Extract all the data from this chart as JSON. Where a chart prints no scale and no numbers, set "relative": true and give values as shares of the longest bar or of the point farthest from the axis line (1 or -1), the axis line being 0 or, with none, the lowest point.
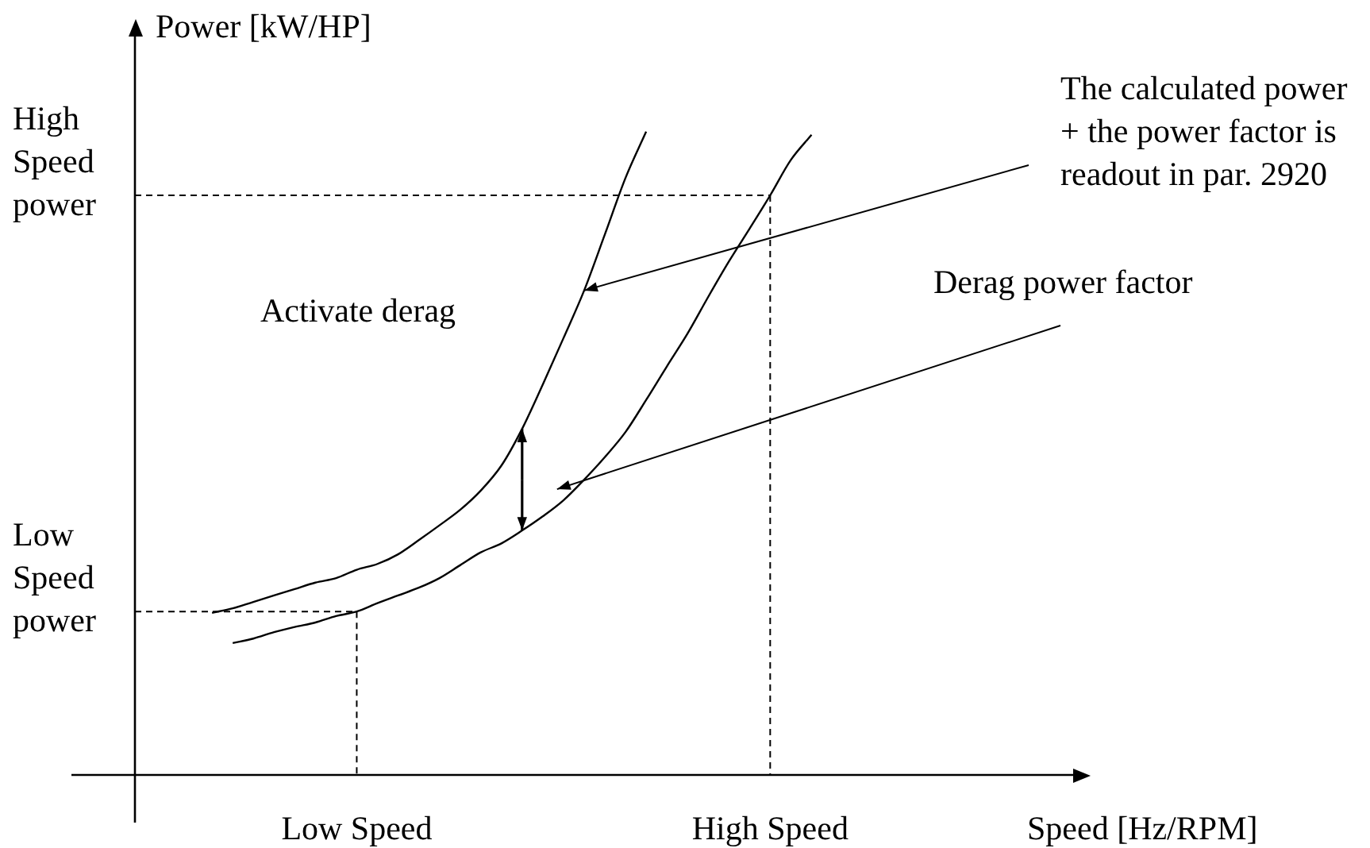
{
  "chart_data": {
    "type": "line",
    "relative": true,
    "ylabel": "Power [kW/HP]",
    "legend": false,
    "marker": "none",
    "line_style": "solid",
    "categories": [
      null,
      null,
      null,
      null,
      null,
      null,
      null,
      null,
      null,
      null,
      "Low Speed",
      null,
      null,
      null,
      null,
      null,
      null,
      null,
      null,
      null,
      null,
      null,
      null,
      null,
      null,
      null,
      null,
      null,
      null,
      null,
      "High Speed",
      null,
      null
    ],
    "series": [
      {
        "color": "#000000",
        "values": [
          null,
          null,
          null,
          0.252,
          0.259,
          0.269,
          0.279,
          0.289,
          0.299,
          0.306,
          0.319,
          0.328,
          0.343,
          0.365,
          0.388,
          0.412,
          0.442,
          0.481,
          0.538,
          0.607,
          0.679,
          0.753,
          0.84,
          0.928,
          1,
          null,
          null,
          null,
          null,
          null,
          null,
          null,
          null
        ]
      },
      {
        "color": "#000000",
        "values": [
          null,
          null,
          null,
          null,
          0.205,
          0.212,
          0.222,
          0.23,
          0.237,
          0.247,
          0.254,
          0.267,
          0.279,
          0.291,
          0.306,
          0.326,
          0.346,
          0.36,
          0.38,
          0.402,
          0.427,
          0.459,
          0.494,
          0.533,
          0.583,
          0.635,
          0.686,
          0.743,
          0.798,
          0.849,
          0.901,
          0.956,
          0.995
        ]
      }
    ],
    "ref_lines": [
      {
        "axis": "x",
        "value": "Low Speed",
        "line_style": "dashed"
      },
      {
        "axis": "x",
        "value": "High Speed",
        "line_style": "dashed"
      },
      {
        "axis": "y",
        "value": 0.254,
        "label": "Low\nSpeed\npower",
        "line_style": "dashed"
      },
      {
        "axis": "y",
        "value": 0.901,
        "label": "High\nSpeed\npower",
        "line_style": "dashed"
      }
    ],
    "annotations": [
      "Activate derag",
      "The calculated power\n+ the power factor is\nreadout in par. 2920",
      "Derag power factor",
      "Speed [Hz/RPM]"
    ]
  }
}
